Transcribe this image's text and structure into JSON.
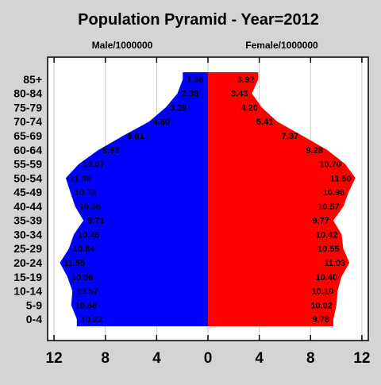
{
  "chart_data": {
    "type": "bar",
    "orientation": "horizontal-population-pyramid",
    "title": "Population Pyramid - Year=2012",
    "left_label": "Male/1000000",
    "right_label": "Female/1000000",
    "categories": [
      "0-4",
      "5-9",
      "10-14",
      "15-19",
      "20-24",
      "25-29",
      "30-34",
      "35-39",
      "40-44",
      "45-49",
      "50-54",
      "55-59",
      "60-64",
      "65-69",
      "70-74",
      "75-79",
      "80-84",
      "85+"
    ],
    "series": [
      {
        "name": "Male/1000000",
        "color": "#0000ff",
        "values": [
          10.22,
          10.66,
          10.57,
          10.96,
          11.55,
          10.84,
          10.46,
          9.71,
          10.36,
          10.73,
          11.08,
          10.07,
          8.53,
          6.61,
          4.6,
          3.29,
          2.38,
          1.96
        ],
        "value_labels": [
          "10.22",
          "10.66",
          "10.57",
          "10.96",
          "11.55",
          "10.84",
          "10.46",
          "9.71",
          "10.36",
          "10.73",
          "11.08",
          "10.07",
          "8.53",
          "6.61",
          "4.60",
          "3.29",
          "2.38",
          "1.96"
        ]
      },
      {
        "name": "Female/1000000",
        "color": "#ff0000",
        "values": [
          9.78,
          10.02,
          10.1,
          10.4,
          11.03,
          10.55,
          10.42,
          9.77,
          10.57,
          10.96,
          11.5,
          10.7,
          9.28,
          7.37,
          5.41,
          4.2,
          3.43,
          3.92
        ],
        "value_labels": [
          "9.78",
          "10.02",
          "10.10",
          "10.40",
          "11.03",
          "10.55",
          "10.42",
          "9.77",
          "10.57",
          "10.96",
          "11.50",
          "10.70",
          "9.28",
          "7.37",
          "5.41",
          "4.20",
          "3.43",
          "3.92"
        ]
      }
    ],
    "x_ticks": [
      {
        "value": -12,
        "label": "12"
      },
      {
        "value": -8,
        "label": "8"
      },
      {
        "value": -4,
        "label": "4"
      },
      {
        "value": 0,
        "label": "0"
      },
      {
        "value": 4,
        "label": "4"
      },
      {
        "value": 8,
        "label": "8"
      },
      {
        "value": 12,
        "label": "12"
      }
    ],
    "xlim": [
      -12.5,
      12.5
    ],
    "grid": "vertical",
    "plot_background": "#ffffff",
    "page_background": "#d4d4d4"
  }
}
